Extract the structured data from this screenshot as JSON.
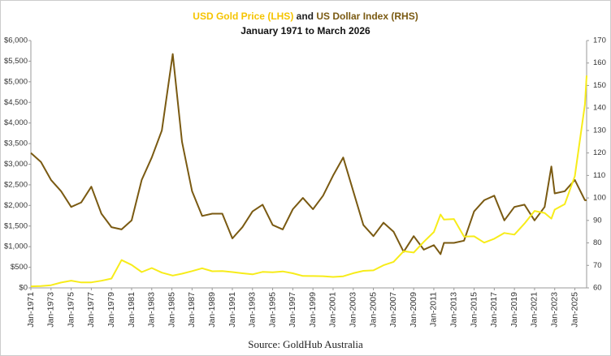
{
  "chart_data": {
    "type": "line",
    "title": [
      "USD Gold Price (LHS)",
      "and",
      "US Dollar Index (RHS)"
    ],
    "subtitle": "January 1971 to March 2026",
    "source": "Source: GoldHub Australia",
    "x": [
      "Jan-1971",
      "Jan-1972",
      "Jan-1973",
      "Jan-1974",
      "Jan-1975",
      "Jan-1976",
      "Jan-1977",
      "Jan-1978",
      "Jan-1979",
      "Jan-1980",
      "Jan-1981",
      "Jan-1982",
      "Jan-1983",
      "Jan-1984",
      "Feb-1985",
      "Jan-1986",
      "Jan-1987",
      "Jan-1988",
      "Jan-1989",
      "Jan-1990",
      "Jan-1991",
      "Jan-1992",
      "Jan-1993",
      "Jan-1994",
      "Jan-1995",
      "Jan-1996",
      "Jan-1997",
      "Jan-1998",
      "Jan-1999",
      "Jan-2000",
      "Jan-2001",
      "Jan-2002",
      "Jan-2003",
      "Jan-2004",
      "Jan-2005",
      "Jan-2006",
      "Jan-2007",
      "Jan-2008",
      "Jan-2009",
      "Jan-2010",
      "Jan-2011",
      "Sep-2011",
      "Jan-2012",
      "Jan-2013",
      "Jan-2014",
      "Jan-2015",
      "Jan-2016",
      "Jan-2017",
      "Jan-2018",
      "Jan-2019",
      "Jan-2020",
      "Jan-2021",
      "Jan-2022",
      "Sep-2022",
      "Jan-2023",
      "Jan-2024",
      "Jan-2025",
      "Jan-2026",
      "Mar-2026"
    ],
    "series": [
      {
        "name": "USD Gold Price (LHS)",
        "color": "#f7ec1a",
        "axis": "y",
        "values": [
          38,
          46,
          65,
          130,
          176,
          131,
          133,
          173,
          227,
          675,
          557,
          384,
          481,
          370,
          300,
          345,
          408,
          477,
          404,
          410,
          384,
          354,
          329,
          387,
          379,
          400,
          355,
          289,
          287,
          284,
          266,
          282,
          356,
          414,
          424,
          549,
          631,
          889,
          858,
          1118,
          1356,
          1780,
          1656,
          1670,
          1244,
          1251,
          1097,
          1192,
          1331,
          1292,
          1560,
          1867,
          1817,
          1680,
          1898,
          2033,
          2710,
          4450,
          5150
        ]
      },
      {
        "name": "US Dollar Index (RHS)",
        "color": "#7a5a12",
        "axis": "y2",
        "values": [
          120,
          116,
          108,
          103,
          96,
          98,
          105,
          93,
          87,
          86,
          90,
          108,
          118,
          130,
          164,
          125,
          103,
          92,
          93,
          93,
          82,
          87,
          94,
          97,
          88,
          86,
          95,
          100,
          95,
          101,
          110,
          118,
          103,
          88,
          83,
          89,
          85,
          76,
          83,
          77,
          79,
          75,
          80,
          80,
          81,
          94,
          99,
          101,
          90,
          96,
          97,
          90,
          96,
          114,
          102,
          103,
          108,
          99,
          99
        ]
      }
    ],
    "xticks": [
      "Jan-1971",
      "Jan-1973",
      "Jan-1975",
      "Jan-1977",
      "Jan-1979",
      "Jan-1981",
      "Jan-1983",
      "Jan-1985",
      "Jan-1987",
      "Jan-1989",
      "Jan-1991",
      "Jan-1993",
      "Jan-1995",
      "Jan-1997",
      "Jan-1999",
      "Jan-2001",
      "Jan-2003",
      "Jan-2005",
      "Jan-2007",
      "Jan-2009",
      "Jan-2011",
      "Jan-2013",
      "Jan-2015",
      "Jan-2017",
      "Jan-2019",
      "Jan-2021",
      "Jan-2023",
      "Jan-2025"
    ],
    "ylim": [
      0,
      6000
    ],
    "yticks": [
      {
        "value": 0,
        "label": "$0"
      },
      {
        "value": 500,
        "label": "$500"
      },
      {
        "value": 1000,
        "label": "$1,000"
      },
      {
        "value": 1500,
        "label": "$1,500"
      },
      {
        "value": 2000,
        "label": "$2,000"
      },
      {
        "value": 2500,
        "label": "$2,500"
      },
      {
        "value": 3000,
        "label": "$3,000"
      },
      {
        "value": 3500,
        "label": "$3,500"
      },
      {
        "value": 4000,
        "label": "$4,000"
      },
      {
        "value": 4500,
        "label": "$4,500"
      },
      {
        "value": 5000,
        "label": "$5,000"
      },
      {
        "value": 5500,
        "label": "$5,500"
      },
      {
        "value": 6000,
        "label": "$6,000"
      }
    ],
    "y2lim": [
      60,
      170
    ],
    "y2ticks": [
      60,
      70,
      80,
      90,
      100,
      110,
      120,
      130,
      140,
      150,
      160,
      170
    ],
    "grid": false
  }
}
